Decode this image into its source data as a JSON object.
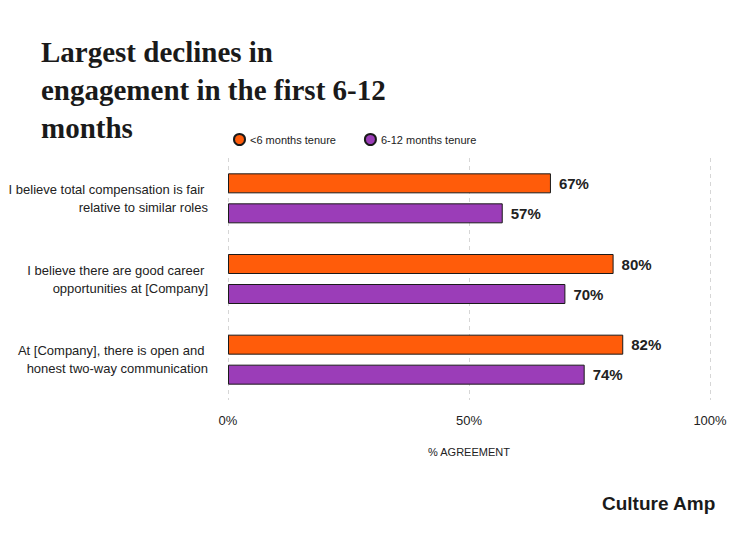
{
  "chart_data": {
    "type": "bar",
    "orientation": "horizontal",
    "title": "Largest declines in engagement in the first 6-12 months",
    "categories": [
      "I believe total compensation is fair relative to similar roles",
      "I believe there are good career opportunities at [Company]",
      "At [Company], there is open and honest two-way communication"
    ],
    "series": [
      {
        "name": "<6 months tenure",
        "color": "#ff5c0a",
        "values": [
          67,
          80,
          82
        ],
        "value_labels": [
          "67%",
          "80%",
          "82%"
        ]
      },
      {
        "name": "6-12 months tenure",
        "color": "#9b3db8",
        "values": [
          57,
          70,
          74
        ],
        "value_labels": [
          "57%",
          "70%",
          "74%"
        ]
      }
    ],
    "xlabel": "% AGREEMENT",
    "xlim": [
      0,
      100
    ],
    "xticks": [
      {
        "value": 0,
        "label": "0%"
      },
      {
        "value": 50,
        "label": "50%"
      },
      {
        "value": 100,
        "label": "100%"
      }
    ],
    "grid": true,
    "legend": "top",
    "data_labels": true,
    "annotation": "Culture Amp"
  }
}
